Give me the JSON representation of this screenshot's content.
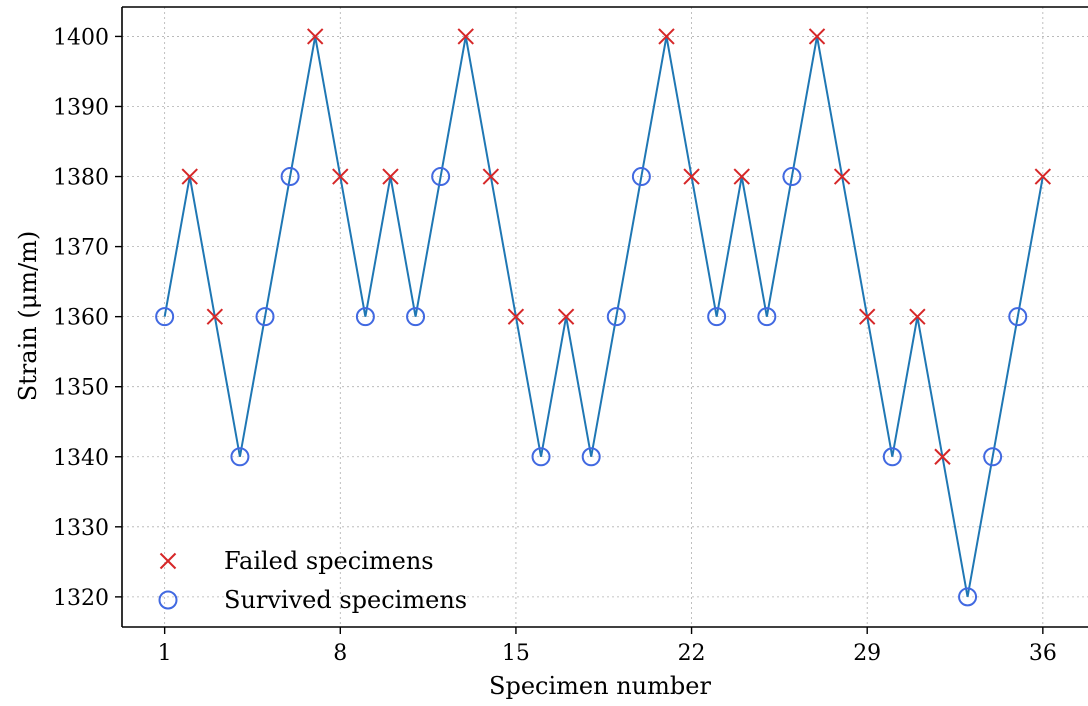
{
  "chart_data": {
    "type": "line",
    "xlabel": "Specimen number",
    "ylabel": "Strain (μm/m)",
    "xlim": [
      -0.7,
      37.8
    ],
    "ylim": [
      1315.7,
      1404.2
    ],
    "xticks": [
      1,
      8,
      15,
      22,
      29,
      36
    ],
    "yticks": [
      1320,
      1330,
      1340,
      1350,
      1360,
      1370,
      1380,
      1390,
      1400
    ],
    "grid": true,
    "legend_position": "bottom-left",
    "line_color": "#1f77b4",
    "series": [
      {
        "name": "Failed specimens",
        "marker": "x",
        "color": "#d62728",
        "x": [
          2,
          3,
          7,
          8,
          10,
          13,
          14,
          15,
          17,
          21,
          22,
          24,
          27,
          28,
          29,
          31,
          32,
          36
        ],
        "y": [
          1380,
          1360,
          1400,
          1380,
          1380,
          1400,
          1380,
          1360,
          1360,
          1400,
          1380,
          1380,
          1400,
          1380,
          1360,
          1360,
          1340,
          1380
        ]
      },
      {
        "name": "Survived specimens",
        "marker": "o",
        "color": "#4169e1",
        "x": [
          1,
          4,
          5,
          6,
          9,
          11,
          12,
          16,
          18,
          19,
          20,
          23,
          25,
          26,
          30,
          33,
          34,
          35
        ],
        "y": [
          1360,
          1340,
          1360,
          1380,
          1360,
          1360,
          1380,
          1340,
          1340,
          1360,
          1380,
          1360,
          1360,
          1380,
          1340,
          1320,
          1340,
          1360
        ]
      }
    ],
    "sequence": [
      1360,
      1380,
      1360,
      1340,
      1360,
      1380,
      1400,
      1380,
      1360,
      1380,
      1360,
      1380,
      1400,
      1380,
      1360,
      1340,
      1360,
      1340,
      1360,
      1380,
      1400,
      1380,
      1360,
      1380,
      1360,
      1380,
      1400,
      1380,
      1360,
      1340,
      1360,
      1340,
      1320,
      1340,
      1360,
      1380
    ]
  }
}
